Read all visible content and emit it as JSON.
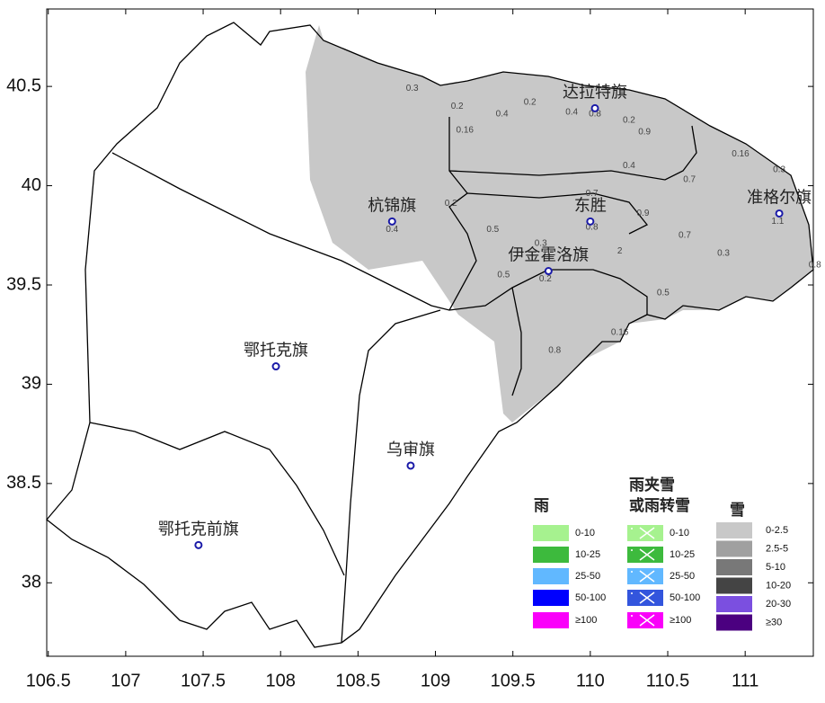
{
  "map": {
    "xlim": [
      106.49,
      111.44
    ],
    "ylim": [
      37.63,
      40.89
    ],
    "xticks": [
      106.5,
      107,
      107.5,
      108,
      108.5,
      109,
      109.5,
      110,
      110.5,
      111
    ],
    "yticks": [
      38,
      38.5,
      39,
      39.5,
      40,
      40.5
    ],
    "station_color": "#1a1aa8",
    "stations": [
      {
        "name": "达拉特旗",
        "lon": 110.03,
        "lat": 40.39
      },
      {
        "name": "杭锦旗",
        "lon": 108.72,
        "lat": 39.82
      },
      {
        "name": "东胜",
        "lon": 110.0,
        "lat": 39.82
      },
      {
        "name": "准格尔旗",
        "lon": 111.22,
        "lat": 39.86
      },
      {
        "name": "伊金霍洛旗",
        "lon": 109.73,
        "lat": 39.57
      },
      {
        "name": "鄂托克旗",
        "lon": 107.97,
        "lat": 39.09
      },
      {
        "name": "乌审旗",
        "lon": 108.84,
        "lat": 38.59
      },
      {
        "name": "鄂托克前旗",
        "lon": 107.47,
        "lat": 38.19
      }
    ],
    "precip": [
      {
        "value": 0.3,
        "lon": 108.85,
        "lat": 40.49
      },
      {
        "value": 0.2,
        "lon": 109.14,
        "lat": 40.4
      },
      {
        "value": 0.4,
        "lon": 109.43,
        "lat": 40.36
      },
      {
        "value": 0.2,
        "lon": 109.61,
        "lat": 40.42
      },
      {
        "value": 0.4,
        "lon": 109.88,
        "lat": 40.37
      },
      {
        "value": 0.8,
        "lon": 110.03,
        "lat": 40.36
      },
      {
        "value": 0.2,
        "lon": 110.25,
        "lat": 40.33
      },
      {
        "value": 0.9,
        "lon": 110.35,
        "lat": 40.27
      },
      {
        "value": 0.16,
        "lon": 109.19,
        "lat": 40.28
      },
      {
        "value": 0.16,
        "lon": 110.97,
        "lat": 40.16
      },
      {
        "value": 0.3,
        "lon": 111.22,
        "lat": 40.08
      },
      {
        "value": 0.4,
        "lon": 110.25,
        "lat": 40.1
      },
      {
        "value": 0.7,
        "lon": 110.64,
        "lat": 40.03
      },
      {
        "value": 0.2,
        "lon": 109.1,
        "lat": 39.91
      },
      {
        "value": 0.7,
        "lon": 110.01,
        "lat": 39.96
      },
      {
        "value": 0.9,
        "lon": 110.34,
        "lat": 39.86
      },
      {
        "value": 0.4,
        "lon": 108.72,
        "lat": 39.78
      },
      {
        "value": 0.5,
        "lon": 109.37,
        "lat": 39.78
      },
      {
        "value": 0.8,
        "lon": 110.01,
        "lat": 39.79
      },
      {
        "value": 0.7,
        "lon": 110.61,
        "lat": 39.75
      },
      {
        "value": 0.3,
        "lon": 109.68,
        "lat": 39.71
      },
      {
        "value": 2,
        "lon": 110.19,
        "lat": 39.67
      },
      {
        "value": 0.3,
        "lon": 110.86,
        "lat": 39.66
      },
      {
        "value": 1.1,
        "lon": 111.21,
        "lat": 39.82
      },
      {
        "value": 0.8,
        "lon": 111.45,
        "lat": 39.6
      },
      {
        "value": 0.5,
        "lon": 109.44,
        "lat": 39.55
      },
      {
        "value": 0.2,
        "lon": 109.71,
        "lat": 39.53
      },
      {
        "value": 0.5,
        "lon": 110.47,
        "lat": 39.46
      },
      {
        "value": 0.16,
        "lon": 110.19,
        "lat": 39.26
      },
      {
        "value": 0.8,
        "lon": 109.77,
        "lat": 39.17
      }
    ]
  },
  "legend": {
    "rain": {
      "title": "雨",
      "items": [
        {
          "label": "0-10",
          "color": "#a6f28f"
        },
        {
          "label": "10-25",
          "color": "#3dba3d"
        },
        {
          "label": "25-50",
          "color": "#61b8ff"
        },
        {
          "label": "50-100",
          "color": "#0000fe"
        },
        {
          "label": "≥100",
          "color": "#fa00fa"
        }
      ]
    },
    "mixed": {
      "title": [
        "雨夹雪",
        "或雨转雪"
      ],
      "items": [
        {
          "label": "0-10",
          "color": "#a6f28f"
        },
        {
          "label": "10-25",
          "color": "#3dba3d"
        },
        {
          "label": "25-50",
          "color": "#61b8ff"
        },
        {
          "label": "50-100",
          "color": "#3355dd"
        },
        {
          "label": "≥100",
          "color": "#fa00fa"
        }
      ]
    },
    "snow": {
      "title": "雪",
      "items": [
        {
          "label": "0-2.5",
          "color": "#c8c8c8"
        },
        {
          "label": "2.5-5",
          "color": "#a0a0a0"
        },
        {
          "label": "5-10",
          "color": "#787878"
        },
        {
          "label": "10-20",
          "color": "#444444"
        },
        {
          "label": "20-30",
          "color": "#7b4fe0"
        },
        {
          "label": "≥30",
          "color": "#4b0080"
        }
      ]
    }
  }
}
